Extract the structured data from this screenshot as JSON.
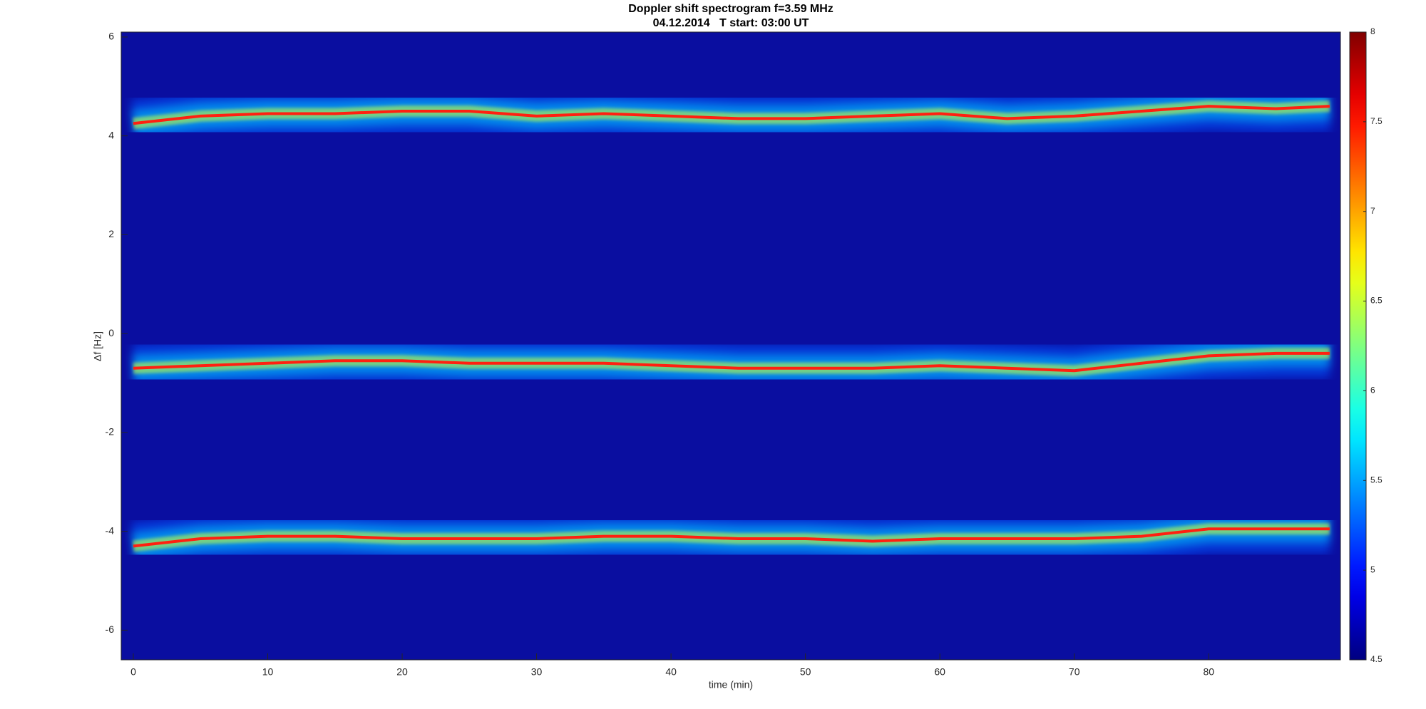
{
  "chart_data": {
    "type": "spectrogram",
    "title": "Doppler shift spectrogram f=3.59 MHz",
    "subtitle": "04.12.2014   T start: 03:00 UT",
    "xlabel": "time (min)",
    "ylabel": "Δf [Hz]",
    "colormap": "jet",
    "x": [
      0,
      5,
      10,
      15,
      20,
      25,
      30,
      35,
      40,
      45,
      50,
      55,
      60,
      65,
      70,
      75,
      80,
      85,
      89
    ],
    "series": [
      {
        "color": "#ff2010",
        "values": [
          4.25,
          4.4,
          4.45,
          4.45,
          4.5,
          4.5,
          4.4,
          4.45,
          4.4,
          4.35,
          4.35,
          4.4,
          4.45,
          4.35,
          4.4,
          4.5,
          4.6,
          4.55,
          4.6
        ]
      },
      {
        "color": "#ff2010",
        "values": [
          -0.7,
          -0.65,
          -0.6,
          -0.55,
          -0.55,
          -0.6,
          -0.6,
          -0.6,
          -0.65,
          -0.7,
          -0.7,
          -0.7,
          -0.65,
          -0.7,
          -0.75,
          -0.6,
          -0.45,
          -0.4,
          -0.4
        ]
      },
      {
        "color": "#ff2010",
        "values": [
          -4.3,
          -4.15,
          -4.1,
          -4.1,
          -4.15,
          -4.15,
          -4.15,
          -4.1,
          -4.1,
          -4.15,
          -4.15,
          -4.2,
          -4.15,
          -4.15,
          -4.15,
          -4.1,
          -3.95,
          -3.95,
          -3.95
        ]
      }
    ],
    "xlim": [
      -0.9,
      89.8
    ],
    "xticks": [
      0,
      10,
      20,
      30,
      40,
      50,
      60,
      70,
      80
    ],
    "ylim": [
      -6.6,
      6.1
    ],
    "yticks": [
      -6,
      -4,
      -2,
      0,
      2,
      4,
      6
    ],
    "clim": [
      4.5,
      8
    ],
    "cticks": [
      4.5,
      5,
      5.5,
      6,
      6.5,
      7,
      7.5,
      8
    ]
  }
}
